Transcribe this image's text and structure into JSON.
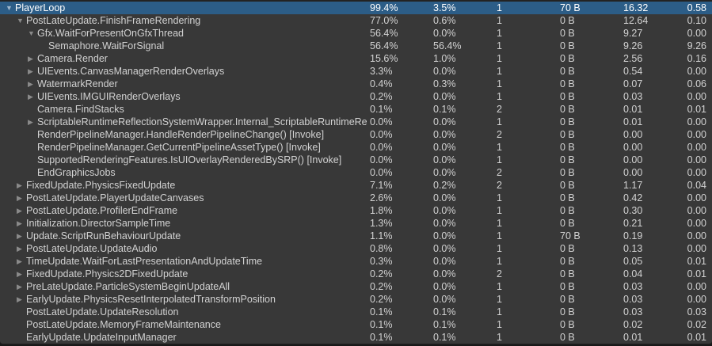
{
  "colors": {
    "background": "#383838",
    "selected_row": "#2c5d87"
  },
  "rows": [
    {
      "name": "PlayerLoop",
      "level": 0,
      "arrow": "expanded",
      "total": "99.4%",
      "self": "3.5%",
      "calls": "1",
      "gc_alloc": "70 B",
      "time_ms": "16.32",
      "self_ms": "0.58",
      "selected": true
    },
    {
      "name": "PostLateUpdate.FinishFrameRendering",
      "level": 1,
      "arrow": "expanded",
      "total": "77.0%",
      "self": "0.6%",
      "calls": "1",
      "gc_alloc": "0 B",
      "time_ms": "12.64",
      "self_ms": "0.10"
    },
    {
      "name": "Gfx.WaitForPresentOnGfxThread",
      "level": 2,
      "arrow": "expanded",
      "total": "56.4%",
      "self": "0.0%",
      "calls": "1",
      "gc_alloc": "0 B",
      "time_ms": "9.27",
      "self_ms": "0.00"
    },
    {
      "name": "Semaphore.WaitForSignal",
      "level": 3,
      "arrow": "none",
      "total": "56.4%",
      "self": "56.4%",
      "calls": "1",
      "gc_alloc": "0 B",
      "time_ms": "9.26",
      "self_ms": "9.26"
    },
    {
      "name": "Camera.Render",
      "level": 2,
      "arrow": "collapsed",
      "total": "15.6%",
      "self": "1.0%",
      "calls": "1",
      "gc_alloc": "0 B",
      "time_ms": "2.56",
      "self_ms": "0.16"
    },
    {
      "name": "UIEvents.CanvasManagerRenderOverlays",
      "level": 2,
      "arrow": "collapsed",
      "total": "3.3%",
      "self": "0.0%",
      "calls": "1",
      "gc_alloc": "0 B",
      "time_ms": "0.54",
      "self_ms": "0.00"
    },
    {
      "name": "WatermarkRender",
      "level": 2,
      "arrow": "collapsed",
      "total": "0.4%",
      "self": "0.3%",
      "calls": "1",
      "gc_alloc": "0 B",
      "time_ms": "0.07",
      "self_ms": "0.06"
    },
    {
      "name": "UIEvents.IMGUIRenderOverlays",
      "level": 2,
      "arrow": "collapsed",
      "total": "0.2%",
      "self": "0.0%",
      "calls": "1",
      "gc_alloc": "0 B",
      "time_ms": "0.03",
      "self_ms": "0.00"
    },
    {
      "name": "Camera.FindStacks",
      "level": 2,
      "arrow": "none",
      "total": "0.1%",
      "self": "0.1%",
      "calls": "2",
      "gc_alloc": "0 B",
      "time_ms": "0.01",
      "self_ms": "0.01"
    },
    {
      "name": "ScriptableRuntimeReflectionSystemWrapper.Internal_ScriptableRuntimeReflectionSystemWrapper_TickRealtimeProbes()",
      "level": 2,
      "arrow": "collapsed",
      "total": "0.0%",
      "self": "0.0%",
      "calls": "1",
      "gc_alloc": "0 B",
      "time_ms": "0.01",
      "self_ms": "0.00"
    },
    {
      "name": "RenderPipelineManager.HandleRenderPipelineChange() [Invoke]",
      "level": 2,
      "arrow": "none",
      "total": "0.0%",
      "self": "0.0%",
      "calls": "2",
      "gc_alloc": "0 B",
      "time_ms": "0.00",
      "self_ms": "0.00"
    },
    {
      "name": "RenderPipelineManager.GetCurrentPipelineAssetType() [Invoke]",
      "level": 2,
      "arrow": "none",
      "total": "0.0%",
      "self": "0.0%",
      "calls": "1",
      "gc_alloc": "0 B",
      "time_ms": "0.00",
      "self_ms": "0.00"
    },
    {
      "name": "SupportedRenderingFeatures.IsUIOverlayRenderedBySRP() [Invoke]",
      "level": 2,
      "arrow": "none",
      "total": "0.0%",
      "self": "0.0%",
      "calls": "1",
      "gc_alloc": "0 B",
      "time_ms": "0.00",
      "self_ms": "0.00"
    },
    {
      "name": "EndGraphicsJobs",
      "level": 2,
      "arrow": "none",
      "total": "0.0%",
      "self": "0.0%",
      "calls": "2",
      "gc_alloc": "0 B",
      "time_ms": "0.00",
      "self_ms": "0.00"
    },
    {
      "name": "FixedUpdate.PhysicsFixedUpdate",
      "level": 1,
      "arrow": "collapsed",
      "total": "7.1%",
      "self": "0.2%",
      "calls": "2",
      "gc_alloc": "0 B",
      "time_ms": "1.17",
      "self_ms": "0.04"
    },
    {
      "name": "PostLateUpdate.PlayerUpdateCanvases",
      "level": 1,
      "arrow": "collapsed",
      "total": "2.6%",
      "self": "0.0%",
      "calls": "1",
      "gc_alloc": "0 B",
      "time_ms": "0.42",
      "self_ms": "0.00"
    },
    {
      "name": "PostLateUpdate.ProfilerEndFrame",
      "level": 1,
      "arrow": "collapsed",
      "total": "1.8%",
      "self": "0.0%",
      "calls": "1",
      "gc_alloc": "0 B",
      "time_ms": "0.30",
      "self_ms": "0.00"
    },
    {
      "name": "Initialization.DirectorSampleTime",
      "level": 1,
      "arrow": "collapsed",
      "total": "1.3%",
      "self": "0.0%",
      "calls": "1",
      "gc_alloc": "0 B",
      "time_ms": "0.21",
      "self_ms": "0.00"
    },
    {
      "name": "Update.ScriptRunBehaviourUpdate",
      "level": 1,
      "arrow": "collapsed",
      "total": "1.1%",
      "self": "0.0%",
      "calls": "1",
      "gc_alloc": "70 B",
      "time_ms": "0.19",
      "self_ms": "0.00"
    },
    {
      "name": "PostLateUpdate.UpdateAudio",
      "level": 1,
      "arrow": "collapsed",
      "total": "0.8%",
      "self": "0.0%",
      "calls": "1",
      "gc_alloc": "0 B",
      "time_ms": "0.13",
      "self_ms": "0.00"
    },
    {
      "name": "TimeUpdate.WaitForLastPresentationAndUpdateTime",
      "level": 1,
      "arrow": "collapsed",
      "total": "0.3%",
      "self": "0.0%",
      "calls": "1",
      "gc_alloc": "0 B",
      "time_ms": "0.05",
      "self_ms": "0.01"
    },
    {
      "name": "FixedUpdate.Physics2DFixedUpdate",
      "level": 1,
      "arrow": "collapsed",
      "total": "0.2%",
      "self": "0.0%",
      "calls": "2",
      "gc_alloc": "0 B",
      "time_ms": "0.04",
      "self_ms": "0.01"
    },
    {
      "name": "PreLateUpdate.ParticleSystemBeginUpdateAll",
      "level": 1,
      "arrow": "collapsed",
      "total": "0.2%",
      "self": "0.0%",
      "calls": "1",
      "gc_alloc": "0 B",
      "time_ms": "0.03",
      "self_ms": "0.00"
    },
    {
      "name": "EarlyUpdate.PhysicsResetInterpolatedTransformPosition",
      "level": 1,
      "arrow": "collapsed",
      "total": "0.2%",
      "self": "0.0%",
      "calls": "1",
      "gc_alloc": "0 B",
      "time_ms": "0.03",
      "self_ms": "0.00"
    },
    {
      "name": "PostLateUpdate.UpdateResolution",
      "level": 1,
      "arrow": "none",
      "total": "0.1%",
      "self": "0.1%",
      "calls": "1",
      "gc_alloc": "0 B",
      "time_ms": "0.03",
      "self_ms": "0.03"
    },
    {
      "name": "PostLateUpdate.MemoryFrameMaintenance",
      "level": 1,
      "arrow": "none",
      "total": "0.1%",
      "self": "0.1%",
      "calls": "1",
      "gc_alloc": "0 B",
      "time_ms": "0.02",
      "self_ms": "0.02"
    },
    {
      "name": "EarlyUpdate.UpdateInputManager",
      "level": 1,
      "arrow": "none",
      "total": "0.1%",
      "self": "0.1%",
      "calls": "1",
      "gc_alloc": "0 B",
      "time_ms": "0.01",
      "self_ms": "0.01"
    }
  ]
}
